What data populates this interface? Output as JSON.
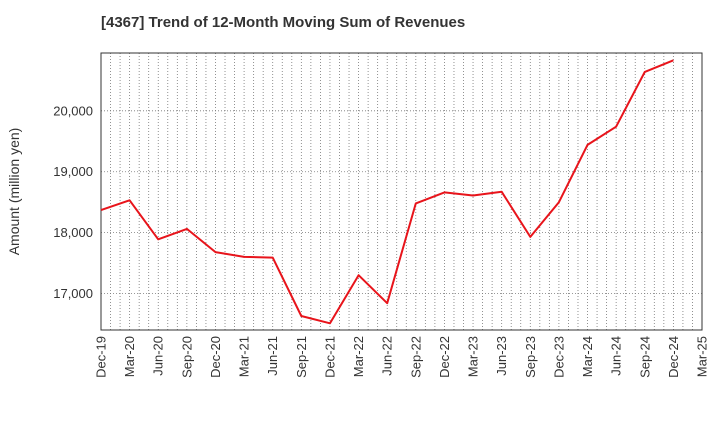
{
  "chart_data": {
    "type": "line",
    "title": "[4367]  Trend of 12-Month Moving Sum of Revenues",
    "xlabel": "",
    "ylabel": "Amount (million yen)",
    "x_ticks": [
      "Dec-19",
      "Mar-20",
      "Jun-20",
      "Sep-20",
      "Dec-20",
      "Mar-21",
      "Jun-21",
      "Sep-21",
      "Dec-21",
      "Mar-22",
      "Jun-22",
      "Sep-22",
      "Dec-22",
      "Mar-23",
      "Jun-23",
      "Sep-23",
      "Dec-23",
      "Mar-24",
      "Jun-24",
      "Sep-24",
      "Dec-24",
      "Mar-25"
    ],
    "y_ticks": [
      17000,
      18000,
      19000,
      20000
    ],
    "y_tick_labels": [
      "17,000",
      "18,000",
      "19,000",
      "20,000"
    ],
    "ylim": [
      16400,
      20950
    ],
    "grid": true,
    "grid_style": "dotted",
    "line_color": "#e8141b",
    "series": [
      {
        "name": "",
        "x": [
          "Dec-19",
          "Mar-20",
          "Jun-20",
          "Sep-20",
          "Dec-20",
          "Mar-21",
          "Jun-21",
          "Sep-21",
          "Dec-21",
          "Mar-22",
          "Jun-22",
          "Sep-22",
          "Dec-22",
          "Mar-23",
          "Jun-23",
          "Sep-23",
          "Dec-23",
          "Mar-24",
          "Jun-24",
          "Sep-24",
          "Dec-24"
        ],
        "values": [
          18370,
          18530,
          17890,
          18060,
          17680,
          17600,
          17590,
          16630,
          16510,
          17300,
          16840,
          18480,
          18660,
          18610,
          18670,
          17930,
          18500,
          19440,
          19740,
          20640,
          20830
        ]
      }
    ]
  }
}
